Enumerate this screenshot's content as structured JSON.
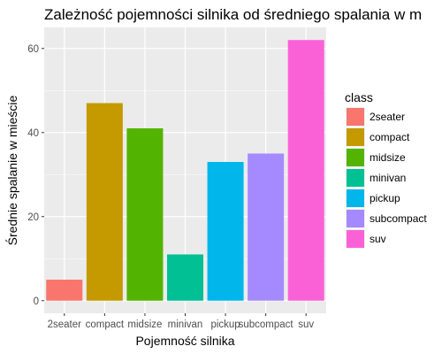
{
  "chart_data": {
    "type": "bar",
    "title": "Zależność pojemności silnika od średniego spalania w m",
    "xlabel": "Pojemność silnika",
    "ylabel": "Średnie spalanie w mieście",
    "categories": [
      "2seater",
      "compact",
      "midsize",
      "minivan",
      "pickup",
      "subcompact",
      "suv"
    ],
    "values": [
      5,
      47,
      41,
      11,
      33,
      35,
      62
    ],
    "colors": [
      "#F8766D",
      "#C49A00",
      "#53B400",
      "#00C094",
      "#00B6EB",
      "#A58AFF",
      "#FB61D7"
    ],
    "y_ticks": [
      0,
      20,
      40,
      60
    ],
    "ylim": [
      -3,
      65
    ],
    "grid": true,
    "background": "#EBEBEB",
    "legend": {
      "title": "class",
      "position": "right",
      "items": [
        "2seater",
        "compact",
        "midsize",
        "minivan",
        "pickup",
        "subcompact",
        "suv"
      ]
    }
  }
}
